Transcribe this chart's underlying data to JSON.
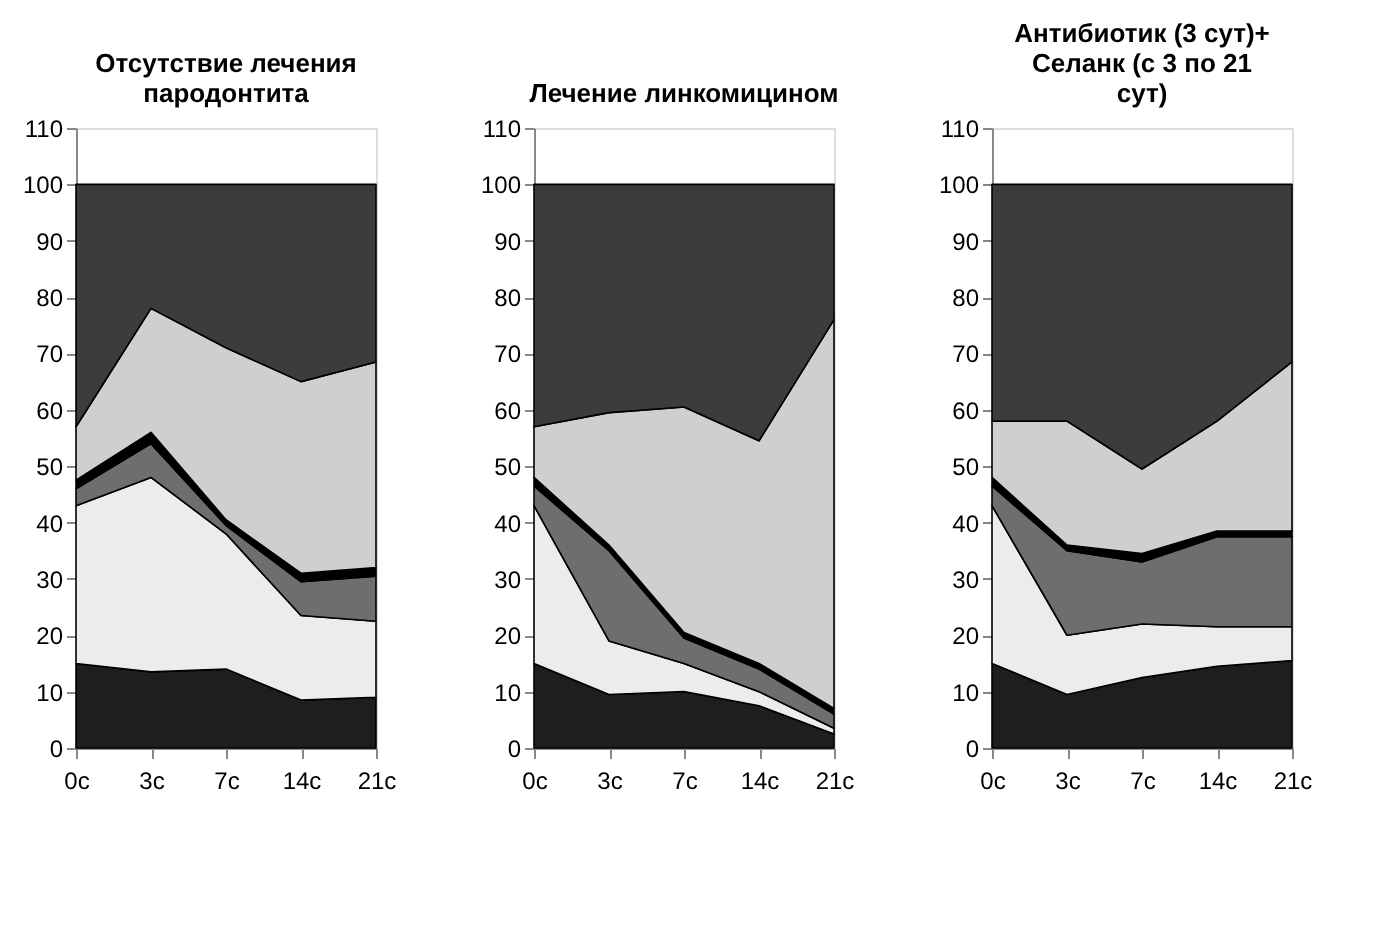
{
  "chart_data": [
    {
      "type": "area",
      "title": "Отсутствие лечения пародонтита",
      "stacked": true,
      "categories": [
        "0с",
        "3с",
        "7с",
        "14с",
        "21с"
      ],
      "ylim": [
        0,
        110
      ],
      "yticks": [
        0,
        10,
        20,
        30,
        40,
        50,
        60,
        70,
        80,
        90,
        100,
        110
      ],
      "grid": false,
      "legend": false,
      "series": [
        {
          "color": "#1e1e1e",
          "values": [
            15,
            13.5,
            14,
            8.5,
            9
          ]
        },
        {
          "color": "#ececec",
          "values": [
            28,
            34.5,
            24,
            15,
            13.5
          ]
        },
        {
          "color": "#6e6e6e",
          "values": [
            3,
            6,
            1.5,
            6,
            8
          ]
        },
        {
          "color": "#000000",
          "values": [
            1.5,
            2,
            1,
            1.5,
            1.5
          ]
        },
        {
          "color": "#cfcfcf",
          "values": [
            9.5,
            22,
            30.5,
            34,
            36.5
          ]
        },
        {
          "color": "#3c3c3c",
          "values": [
            43,
            22,
            29,
            35,
            31.5
          ]
        }
      ]
    },
    {
      "type": "area",
      "title": "Лечение линкомицином",
      "stacked": true,
      "categories": [
        "0с",
        "3с",
        "7с",
        "14с",
        "21с"
      ],
      "ylim": [
        0,
        110
      ],
      "yticks": [
        0,
        10,
        20,
        30,
        40,
        50,
        60,
        70,
        80,
        90,
        100,
        110
      ],
      "grid": false,
      "legend": false,
      "series": [
        {
          "color": "#1e1e1e",
          "values": [
            15,
            9.5,
            10,
            7.5,
            2.5
          ]
        },
        {
          "color": "#ececec",
          "values": [
            28,
            9.5,
            5,
            2.5,
            1
          ]
        },
        {
          "color": "#6e6e6e",
          "values": [
            3.5,
            16,
            4.5,
            4,
            2.5
          ]
        },
        {
          "color": "#000000",
          "values": [
            1.5,
            1,
            1,
            1,
            1
          ]
        },
        {
          "color": "#cfcfcf",
          "values": [
            9,
            23.5,
            40,
            39.5,
            69
          ]
        },
        {
          "color": "#3c3c3c",
          "values": [
            43,
            40.5,
            39.5,
            45.5,
            24
          ]
        }
      ]
    },
    {
      "type": "area",
      "title": "Антибиотик (3 сут)+ Селанк (с 3 по 21 сут)",
      "stacked": true,
      "categories": [
        "0с",
        "3с",
        "7с",
        "14с",
        "21с"
      ],
      "ylim": [
        0,
        110
      ],
      "yticks": [
        0,
        10,
        20,
        30,
        40,
        50,
        60,
        70,
        80,
        90,
        100,
        110
      ],
      "grid": false,
      "legend": false,
      "series": [
        {
          "color": "#1e1e1e",
          "values": [
            15,
            9.5,
            12.5,
            14.5,
            15.5
          ]
        },
        {
          "color": "#ececec",
          "values": [
            28,
            10.5,
            9.5,
            7,
            6
          ]
        },
        {
          "color": "#6e6e6e",
          "values": [
            3.5,
            15,
            11,
            16,
            16
          ]
        },
        {
          "color": "#000000",
          "values": [
            1.5,
            1,
            1.5,
            1,
            1
          ]
        },
        {
          "color": "#cfcfcf",
          "values": [
            10,
            22,
            15,
            19.5,
            30
          ]
        },
        {
          "color": "#3c3c3c",
          "values": [
            42,
            42,
            50.5,
            42,
            31.5
          ]
        }
      ]
    }
  ]
}
